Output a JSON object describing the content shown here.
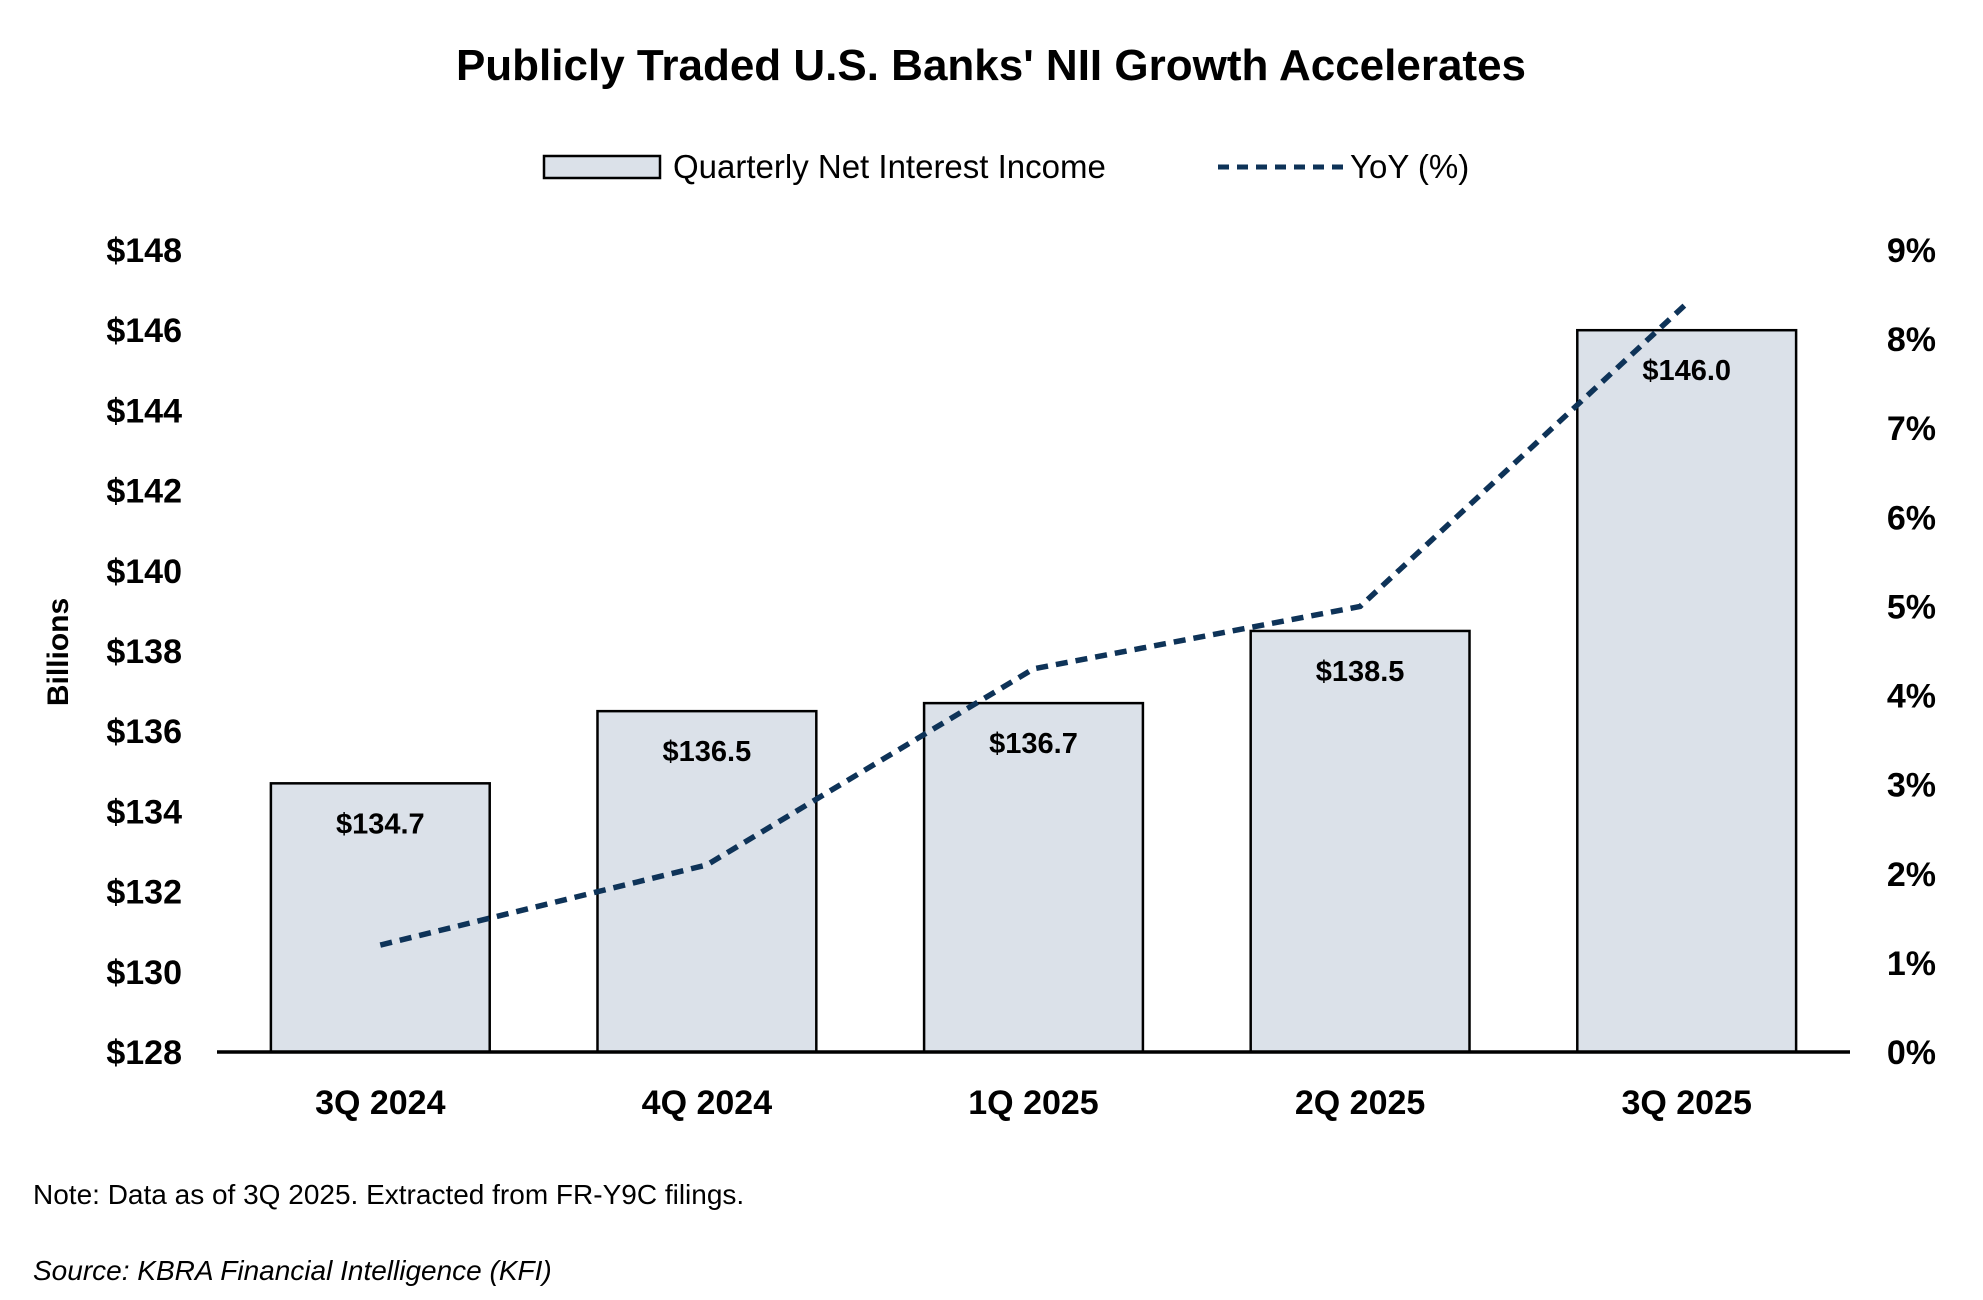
{
  "chart_data": {
    "type": "bar",
    "title": "Publicly Traded U.S. Banks' NII Growth Accelerates",
    "categories": [
      "3Q 2024",
      "4Q 2024",
      "1Q 2025",
      "2Q 2025",
      "3Q 2025"
    ],
    "series": [
      {
        "name": "Quarterly Net Interest Income",
        "type": "bar",
        "axis": "left",
        "values": [
          134.7,
          136.5,
          136.7,
          138.5,
          146.0
        ],
        "labels": [
          "$134.7",
          "$136.5",
          "$136.7",
          "$138.5",
          "$146.0"
        ],
        "color": "#dbe1e9"
      },
      {
        "name": "YoY (%)",
        "type": "line",
        "axis": "right",
        "style": "dashed",
        "values": [
          1.2,
          2.1,
          4.3,
          5.0,
          8.4
        ],
        "color": "#0e3358"
      }
    ],
    "ylabel": "Billions",
    "ylim": [
      128,
      148
    ],
    "y_ticks": [
      "$148",
      "$146",
      "$144",
      "$142",
      "$140",
      "$138",
      "$136",
      "$134",
      "$132",
      "$130",
      "$128"
    ],
    "y2lim": [
      0,
      9
    ],
    "y2_ticks": [
      "9%",
      "8%",
      "7%",
      "6%",
      "5%",
      "4%",
      "3%",
      "2%",
      "1%",
      "0%"
    ],
    "legend_position": "top-center",
    "grid": false,
    "note": "Note: Data as of 3Q 2025. Extracted from FR-Y9C filings.",
    "source": "Source: KBRA Financial Intelligence (KFI)"
  }
}
